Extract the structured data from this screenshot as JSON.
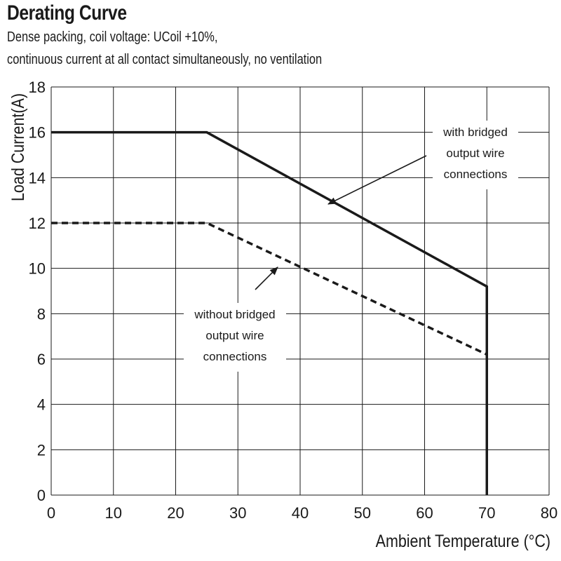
{
  "chart_data": {
    "type": "line",
    "title": "Derating Curve",
    "subtitle": [
      "Dense packing, coil voltage: UCoil +10%,",
      "continuous current at all contact simultaneously, no ventilation"
    ],
    "xlabel": "Ambient Temperature (°C)",
    "ylabel": "Load Current(A)",
    "xlim": [
      0,
      80
    ],
    "ylim": [
      0,
      18
    ],
    "xticks": [
      "0",
      "10",
      "20",
      "30",
      "40",
      "50",
      "60",
      "70",
      "80"
    ],
    "yticks": [
      "0",
      "2",
      "4",
      "6",
      "8",
      "10",
      "12",
      "14",
      "16",
      "18"
    ],
    "grid": true,
    "series": [
      {
        "name": "with bridged output wire connections",
        "style": "solid",
        "x": [
          0,
          25,
          70,
          70
        ],
        "y": [
          16,
          16,
          9.2,
          0
        ]
      },
      {
        "name": "without bridged output wire connections",
        "style": "dashed",
        "x": [
          0,
          25,
          70
        ],
        "y": [
          12,
          12,
          6.2
        ]
      }
    ],
    "annotations": [
      {
        "lines": [
          "with bridged",
          "output wire",
          "connections"
        ]
      },
      {
        "lines": [
          "without bridged",
          "output wire",
          "connections"
        ]
      }
    ]
  },
  "colors": {
    "line": "#1a1a1a",
    "grid": "#1a1a1a",
    "background": "#ffffff"
  }
}
